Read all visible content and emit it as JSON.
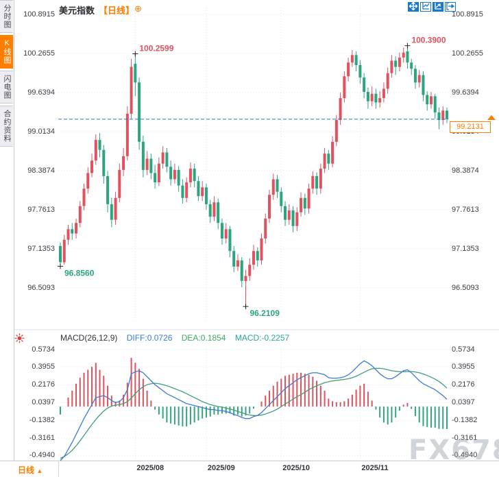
{
  "app": {
    "name": "FX678 chart"
  },
  "watermark": "FX678",
  "sidebar": {
    "tabs": [
      {
        "key": "time-chart",
        "label": "分时图",
        "active": false
      },
      {
        "key": "kline-chart",
        "label": "K线图",
        "active": true
      },
      {
        "key": "flash-chart",
        "label": "闪电图",
        "active": false
      },
      {
        "key": "contract-info",
        "label": "合约资料",
        "active": false
      }
    ]
  },
  "header": {
    "title": "美元指数",
    "period": "【日线】",
    "add_icon": "⊕",
    "toolbar": [
      "pan",
      "axis-zoom",
      "auto-fit",
      "restore-right"
    ]
  },
  "footer": {
    "period": "日线",
    "arrow": "▲"
  },
  "price_tag": {
    "label": "99.2131"
  },
  "colors": {
    "up": "#e0525e",
    "down": "#2aa57d",
    "hist_up": "#d9545e",
    "hist_down": "#33a57e",
    "diff_line": "#3a7bd5",
    "dea_line": "#3f9e7a",
    "dashed_line": "#1a7ad4",
    "accent_orange": "#ff7e00",
    "toolbar_blue": "#1879c8",
    "grid": "#e2e2e8",
    "annotation_high": "#e0525e",
    "annotation_low": "#2aa57d"
  },
  "chart_data": {
    "type": "candlestick",
    "title": "美元指数 日线 (US Dollar Index, daily)",
    "legend_position": "none",
    "grid": true,
    "price_axis": {
      "labels": [
        "100.8915",
        "100.2655",
        "99.6394",
        "99.0134",
        "98.3874",
        "97.7613",
        "97.1353",
        "96.5093"
      ],
      "range": [
        96.2,
        100.9
      ]
    },
    "current_price": 99.2131,
    "current_price_label": "99.2131",
    "month_ticks": [
      {
        "label": "2025/08",
        "index": 19
      },
      {
        "label": "2025/09",
        "index": 37
      },
      {
        "label": "2025/10",
        "index": 56
      },
      {
        "label": "2025/11",
        "index": 76
      }
    ],
    "annotations": [
      {
        "text": "100.2599",
        "price": 100.2599,
        "index": 19,
        "side": "high",
        "color": "#e0525e"
      },
      {
        "text": "100.3900",
        "price": 100.39,
        "index": 88,
        "side": "high",
        "color": "#e0525e"
      },
      {
        "text": "96.8560",
        "price": 96.856,
        "index": 0,
        "side": "low",
        "color": "#2aa57d"
      },
      {
        "text": "96.2109",
        "price": 96.2109,
        "index": 47,
        "side": "low",
        "color": "#2aa57d"
      }
    ],
    "candles": [
      [
        97.18,
        97.24,
        96.856,
        96.92
      ],
      [
        96.92,
        97.36,
        96.88,
        97.28
      ],
      [
        97.28,
        97.52,
        97.2,
        97.45
      ],
      [
        97.45,
        97.55,
        97.28,
        97.38
      ],
      [
        97.38,
        97.62,
        97.3,
        97.55
      ],
      [
        97.55,
        97.9,
        97.48,
        97.82
      ],
      [
        97.82,
        98.18,
        97.75,
        98.1
      ],
      [
        98.1,
        98.44,
        98.02,
        98.35
      ],
      [
        98.35,
        98.66,
        98.28,
        98.55
      ],
      [
        98.55,
        98.97,
        98.48,
        98.88
      ],
      [
        98.88,
        98.99,
        98.6,
        98.72
      ],
      [
        98.72,
        98.8,
        98.18,
        98.3
      ],
      [
        98.3,
        98.38,
        97.72,
        97.85
      ],
      [
        97.85,
        97.95,
        97.48,
        97.6
      ],
      [
        97.6,
        98.05,
        97.52,
        97.95
      ],
      [
        97.95,
        98.5,
        97.88,
        98.4
      ],
      [
        98.4,
        98.75,
        98.3,
        98.62
      ],
      [
        98.62,
        99.42,
        98.55,
        99.3
      ],
      [
        99.3,
        100.18,
        99.22,
        100.05
      ],
      [
        100.1,
        100.2599,
        99.58,
        99.8
      ],
      [
        99.8,
        99.88,
        98.72,
        98.85
      ],
      [
        98.85,
        98.95,
        98.28,
        98.4
      ],
      [
        98.4,
        98.7,
        98.32,
        98.58
      ],
      [
        98.58,
        98.66,
        98.25,
        98.35
      ],
      [
        98.35,
        98.48,
        98.1,
        98.2
      ],
      [
        98.2,
        98.6,
        98.14,
        98.5
      ],
      [
        98.5,
        98.78,
        98.42,
        98.68
      ],
      [
        98.68,
        98.75,
        98.36,
        98.45
      ],
      [
        98.45,
        98.55,
        98.15,
        98.25
      ],
      [
        98.25,
        98.5,
        98.18,
        98.4
      ],
      [
        98.4,
        98.46,
        98.05,
        98.15
      ],
      [
        98.15,
        98.25,
        97.86,
        97.95
      ],
      [
        97.95,
        98.28,
        97.88,
        98.2
      ],
      [
        98.2,
        98.52,
        98.12,
        98.42
      ],
      [
        98.42,
        98.5,
        98.12,
        98.22
      ],
      [
        98.22,
        98.3,
        97.9,
        97.98
      ],
      [
        97.98,
        98.22,
        97.9,
        98.12
      ],
      [
        98.12,
        98.18,
        97.76,
        97.85
      ],
      [
        97.85,
        97.92,
        97.55,
        97.65
      ],
      [
        97.65,
        97.98,
        97.58,
        97.88
      ],
      [
        97.88,
        97.94,
        97.45,
        97.55
      ],
      [
        97.55,
        97.62,
        97.2,
        97.3
      ],
      [
        97.3,
        97.55,
        97.22,
        97.45
      ],
      [
        97.45,
        97.5,
        97.0,
        97.1
      ],
      [
        97.1,
        97.18,
        96.76,
        96.85
      ],
      [
        96.85,
        97.05,
        96.78,
        96.95
      ],
      [
        96.95,
        97.0,
        96.52,
        96.62
      ],
      [
        96.62,
        96.8,
        96.2109,
        96.7
      ],
      [
        96.7,
        96.98,
        96.62,
        96.88
      ],
      [
        96.88,
        97.2,
        96.8,
        97.1
      ],
      [
        97.1,
        97.16,
        96.85,
        96.95
      ],
      [
        96.95,
        97.38,
        96.88,
        97.3
      ],
      [
        97.3,
        97.7,
        97.22,
        97.62
      ],
      [
        97.62,
        98.08,
        97.55,
        98.0
      ],
      [
        98.0,
        98.34,
        97.92,
        98.25
      ],
      [
        98.25,
        98.32,
        97.95,
        98.05
      ],
      [
        98.05,
        98.12,
        97.72,
        97.82
      ],
      [
        97.82,
        97.9,
        97.5,
        97.6
      ],
      [
        97.6,
        97.85,
        97.52,
        97.75
      ],
      [
        97.75,
        97.82,
        97.4,
        97.5
      ],
      [
        97.5,
        97.8,
        97.42,
        97.72
      ],
      [
        97.72,
        98.04,
        97.65,
        97.95
      ],
      [
        97.95,
        98.02,
        97.68,
        97.78
      ],
      [
        97.78,
        98.18,
        97.7,
        98.1
      ],
      [
        98.1,
        98.38,
        98.02,
        98.3
      ],
      [
        98.3,
        98.36,
        98.0,
        98.1
      ],
      [
        98.1,
        98.5,
        98.02,
        98.42
      ],
      [
        98.42,
        98.75,
        98.35,
        98.66
      ],
      [
        98.66,
        98.72,
        98.4,
        98.5
      ],
      [
        98.5,
        98.94,
        98.44,
        98.85
      ],
      [
        98.85,
        99.28,
        98.78,
        99.2
      ],
      [
        99.2,
        99.64,
        99.12,
        99.55
      ],
      [
        99.55,
        99.98,
        99.48,
        99.9
      ],
      [
        99.9,
        100.2,
        99.82,
        100.12
      ],
      [
        100.12,
        100.32,
        100.05,
        100.24
      ],
      [
        100.24,
        100.3,
        99.98,
        100.08
      ],
      [
        100.08,
        100.16,
        99.78,
        99.88
      ],
      [
        99.88,
        99.95,
        99.55,
        99.65
      ],
      [
        99.65,
        99.72,
        99.38,
        99.5
      ],
      [
        99.5,
        99.74,
        99.42,
        99.62
      ],
      [
        99.62,
        99.7,
        99.38,
        99.48
      ],
      [
        99.48,
        99.66,
        99.4,
        99.55
      ],
      [
        99.55,
        99.8,
        99.48,
        99.7
      ],
      [
        99.7,
        100.04,
        99.62,
        99.95
      ],
      [
        99.95,
        100.24,
        99.88,
        100.15
      ],
      [
        100.15,
        100.22,
        99.92,
        100.05
      ],
      [
        100.05,
        100.28,
        99.98,
        100.2
      ],
      [
        100.2,
        100.36,
        100.12,
        100.28
      ],
      [
        100.3,
        100.39,
        100.02,
        100.12
      ],
      [
        100.12,
        100.18,
        99.92,
        100.02
      ],
      [
        100.02,
        100.08,
        99.7,
        99.8
      ],
      [
        99.8,
        100.0,
        99.72,
        99.92
      ],
      [
        99.92,
        99.98,
        99.5,
        99.6
      ],
      [
        99.6,
        99.66,
        99.35,
        99.45
      ],
      [
        99.45,
        99.65,
        99.38,
        99.58
      ],
      [
        99.58,
        99.62,
        99.22,
        99.32
      ],
      [
        99.32,
        99.4,
        99.05,
        99.2
      ],
      [
        99.2,
        99.42,
        99.12,
        99.35
      ],
      [
        99.35,
        99.4,
        99.15,
        99.2131
      ]
    ],
    "macd": {
      "params": [
        26,
        12,
        9
      ],
      "header": {
        "name": "MACD(26,12,9)",
        "diff": "DIFF:0.0726",
        "dea": "DEA:0.1854",
        "macd": "MACD:-0.2257"
      },
      "axis_labels": [
        "0.5734",
        "0.3955",
        "0.2176",
        "0.0397",
        "-0.1382",
        "-0.3161",
        "-0.4940"
      ],
      "histogram_formula": "2*(diff-dea)",
      "diff": [
        -0.56,
        -0.5,
        -0.43,
        -0.36,
        -0.28,
        -0.2,
        -0.12,
        -0.05,
        0.02,
        0.09,
        0.1,
        0.11,
        0.09,
        0.06,
        0.04,
        0.05,
        0.09,
        0.17,
        0.33,
        0.35,
        0.36,
        0.34,
        0.3,
        0.26,
        0.22,
        0.19,
        0.16,
        0.13,
        0.11,
        0.09,
        0.07,
        0.05,
        0.03,
        0.02,
        0.01,
        0.0,
        -0.01,
        -0.02,
        -0.03,
        -0.03,
        -0.04,
        -0.04,
        -0.05,
        -0.06,
        -0.08,
        -0.09,
        -0.11,
        -0.12,
        -0.12,
        -0.1,
        -0.09,
        -0.06,
        -0.02,
        0.02,
        0.06,
        0.1,
        0.14,
        0.18,
        0.21,
        0.24,
        0.27,
        0.29,
        0.31,
        0.33,
        0.34,
        0.34,
        0.33,
        0.32,
        0.29,
        0.285,
        0.285,
        0.29,
        0.3,
        0.32,
        0.35,
        0.39,
        0.43,
        0.46,
        0.44,
        0.41,
        0.37,
        0.33,
        0.3,
        0.28,
        0.28,
        0.3,
        0.33,
        0.36,
        0.37,
        0.34,
        0.3,
        0.26,
        0.23,
        0.21,
        0.19,
        0.17,
        0.14,
        0.11,
        0.0726
      ],
      "dea": [
        -0.52,
        -0.5,
        -0.475,
        -0.44,
        -0.395,
        -0.345,
        -0.29,
        -0.235,
        -0.18,
        -0.13,
        -0.085,
        -0.045,
        -0.015,
        0.005,
        0.015,
        0.02,
        0.03,
        0.05,
        0.085,
        0.13,
        0.17,
        0.2,
        0.22,
        0.23,
        0.235,
        0.23,
        0.22,
        0.21,
        0.195,
        0.18,
        0.165,
        0.15,
        0.13,
        0.11,
        0.09,
        0.07,
        0.05,
        0.035,
        0.02,
        0.01,
        0.0,
        -0.005,
        -0.015,
        -0.025,
        -0.035,
        -0.05,
        -0.06,
        -0.075,
        -0.085,
        -0.09,
        -0.09,
        -0.085,
        -0.075,
        -0.06,
        -0.045,
        -0.025,
        0.0,
        0.025,
        0.05,
        0.075,
        0.1,
        0.12,
        0.145,
        0.17,
        0.19,
        0.21,
        0.225,
        0.24,
        0.25,
        0.258,
        0.263,
        0.268,
        0.273,
        0.28,
        0.29,
        0.305,
        0.325,
        0.345,
        0.365,
        0.38,
        0.385,
        0.385,
        0.38,
        0.37,
        0.36,
        0.355,
        0.35,
        0.35,
        0.352,
        0.352,
        0.348,
        0.34,
        0.328,
        0.313,
        0.296,
        0.276,
        0.252,
        0.222,
        0.1854
      ]
    }
  }
}
